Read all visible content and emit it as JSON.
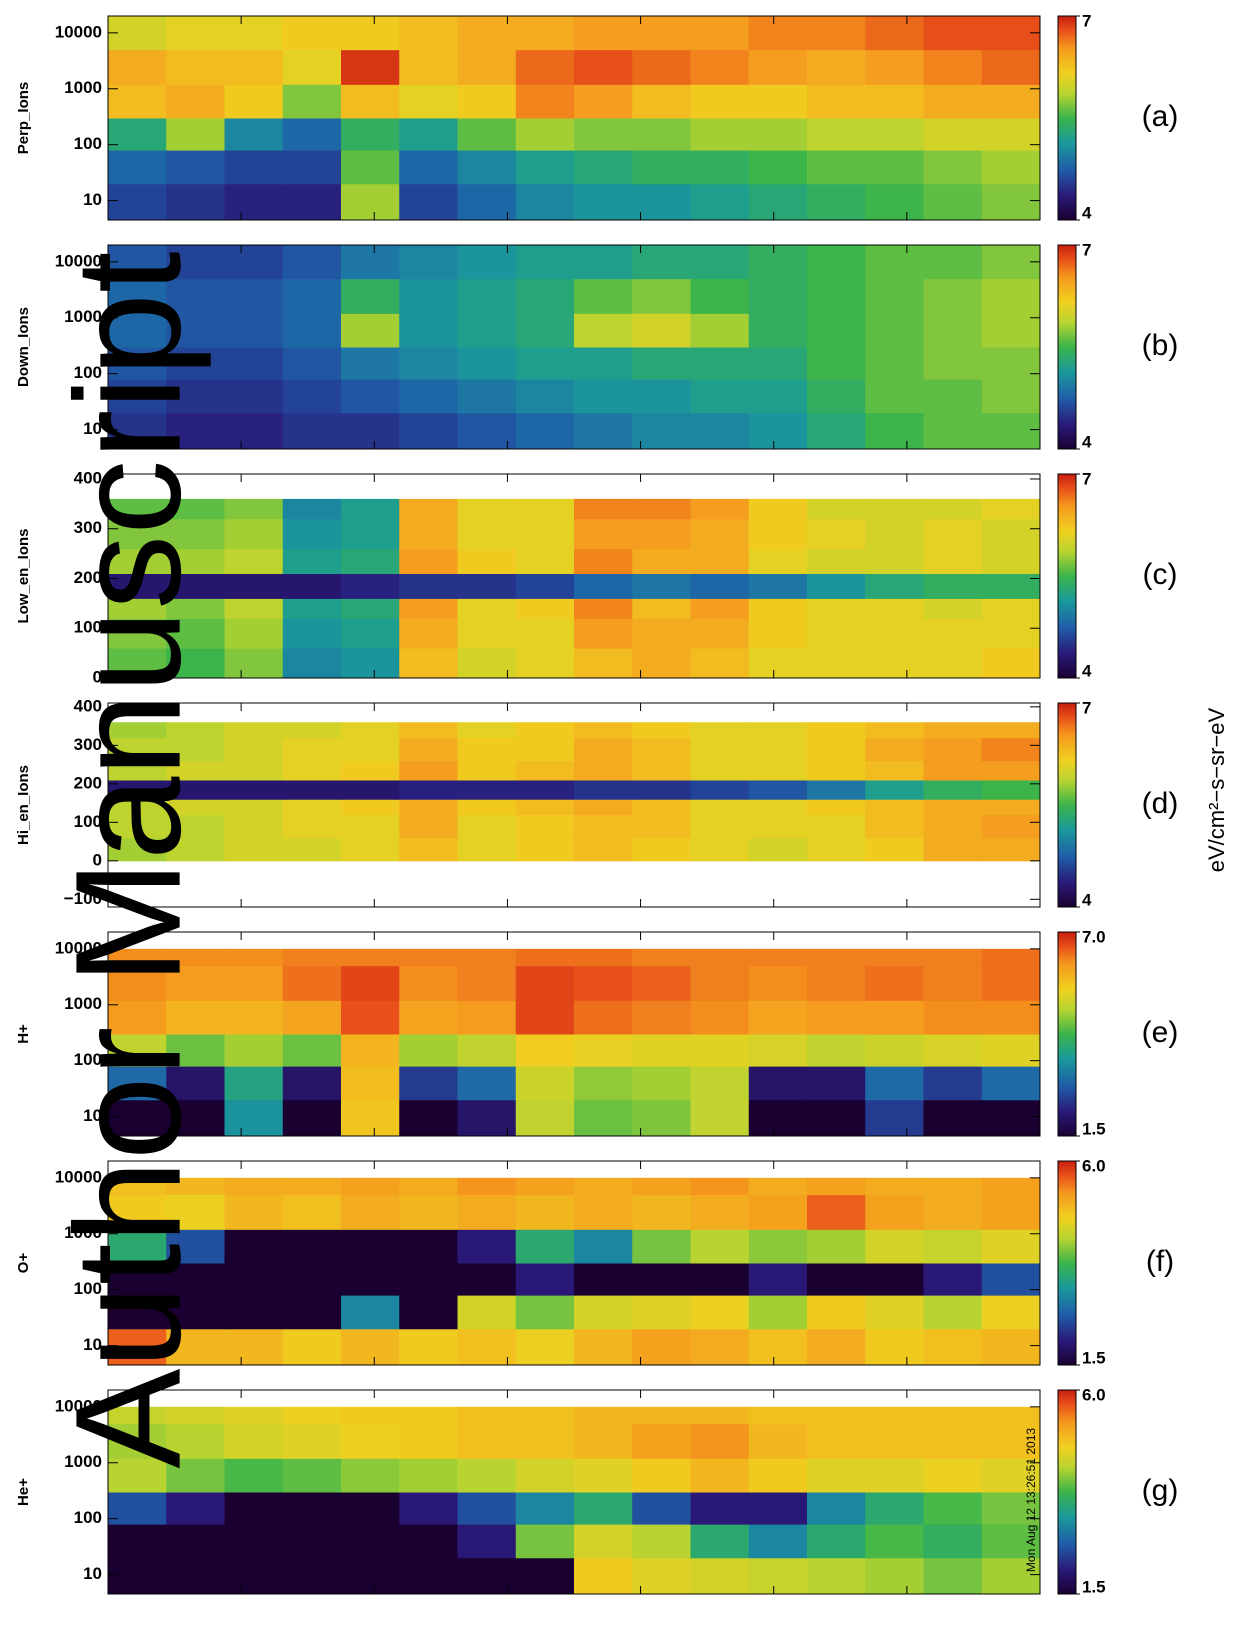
{
  "chart_data": [
    {
      "type": "heatmap",
      "ylabel": "Perp_Ions",
      "panel_label": "(a)",
      "log_y": true,
      "ylim": [
        4.5,
        20000
      ],
      "yticks": [
        10,
        100,
        1000,
        10000
      ],
      "yedges": [
        4.5,
        20,
        80,
        300,
        1200,
        5000,
        20000
      ],
      "clim": [
        4,
        7
      ],
      "cticks": [
        4,
        7
      ],
      "z": [
        [
          4.6,
          4.5,
          4.4,
          4.4,
          5.8,
          4.6,
          4.8,
          5.0,
          5.1,
          5.1,
          5.2,
          5.3,
          5.4,
          5.5,
          5.6,
          5.7
        ],
        [
          4.8,
          4.7,
          4.6,
          4.6,
          5.6,
          4.8,
          5.0,
          5.2,
          5.3,
          5.4,
          5.4,
          5.5,
          5.6,
          5.6,
          5.7,
          5.8
        ],
        [
          5.3,
          5.8,
          5.0,
          4.8,
          5.4,
          5.2,
          5.6,
          5.8,
          5.7,
          5.7,
          5.8,
          5.8,
          5.9,
          5.9,
          6.0,
          6.0
        ],
        [
          6.3,
          6.4,
          6.2,
          5.7,
          6.3,
          6.1,
          6.2,
          6.6,
          6.5,
          6.3,
          6.2,
          6.2,
          6.3,
          6.3,
          6.4,
          6.4
        ],
        [
          6.4,
          6.3,
          6.3,
          6.1,
          6.9,
          6.3,
          6.4,
          6.7,
          6.8,
          6.7,
          6.6,
          6.5,
          6.4,
          6.5,
          6.6,
          6.7
        ],
        [
          6.0,
          6.1,
          6.1,
          6.2,
          6.2,
          6.3,
          6.4,
          6.4,
          6.5,
          6.5,
          6.5,
          6.6,
          6.6,
          6.7,
          6.8,
          6.8
        ]
      ]
    },
    {
      "type": "heatmap",
      "ylabel": "Down_Ions",
      "panel_label": "(b)",
      "log_y": true,
      "ylim": [
        4.5,
        20000
      ],
      "yticks": [
        10,
        100,
        1000,
        10000
      ],
      "yedges": [
        4.5,
        20,
        80,
        300,
        1200,
        5000,
        20000
      ],
      "clim": [
        4,
        7
      ],
      "cticks": [
        4,
        7
      ],
      "z": [
        [
          4.5,
          4.4,
          4.4,
          4.5,
          4.5,
          4.6,
          4.7,
          4.8,
          4.9,
          5.0,
          5.0,
          5.1,
          5.3,
          5.5,
          5.6,
          5.6
        ],
        [
          4.6,
          4.5,
          4.5,
          4.6,
          4.7,
          4.8,
          4.9,
          5.0,
          5.1,
          5.1,
          5.2,
          5.2,
          5.4,
          5.6,
          5.6,
          5.7
        ],
        [
          4.7,
          4.6,
          4.6,
          4.7,
          4.9,
          5.0,
          5.1,
          5.2,
          5.2,
          5.3,
          5.3,
          5.3,
          5.5,
          5.6,
          5.7,
          5.7
        ],
        [
          4.8,
          4.7,
          4.7,
          4.8,
          5.8,
          5.1,
          5.2,
          5.3,
          5.9,
          6.0,
          5.8,
          5.4,
          5.5,
          5.6,
          5.7,
          5.8
        ],
        [
          4.8,
          4.7,
          4.7,
          4.8,
          5.4,
          5.1,
          5.2,
          5.3,
          5.6,
          5.7,
          5.5,
          5.4,
          5.5,
          5.6,
          5.7,
          5.8
        ],
        [
          4.7,
          4.6,
          4.6,
          4.7,
          4.9,
          5.0,
          5.1,
          5.2,
          5.2,
          5.3,
          5.3,
          5.4,
          5.5,
          5.6,
          5.6,
          5.7
        ]
      ]
    },
    {
      "type": "heatmap",
      "ylabel": "Low_en_Ions",
      "panel_label": "(c)",
      "log_y": false,
      "ylim": [
        0,
        410
      ],
      "yticks": [
        0,
        100,
        200,
        300,
        400
      ],
      "yedges": [
        0,
        60,
        120,
        160,
        210,
        260,
        320,
        360
      ],
      "clim": [
        4,
        7
      ],
      "cticks": [
        4,
        7
      ],
      "z": [
        [
          5.6,
          5.5,
          5.7,
          5.0,
          5.1,
          6.3,
          6.0,
          6.1,
          6.3,
          6.4,
          6.3,
          6.1,
          6.1,
          6.1,
          6.1,
          6.2
        ],
        [
          5.7,
          5.6,
          5.8,
          5.1,
          5.2,
          6.4,
          6.1,
          6.1,
          6.5,
          6.4,
          6.4,
          6.2,
          6.1,
          6.1,
          6.1,
          6.1
        ],
        [
          5.8,
          5.7,
          5.9,
          5.2,
          5.3,
          6.5,
          6.1,
          6.2,
          6.6,
          6.3,
          6.5,
          6.2,
          6.1,
          6.1,
          6.0,
          6.1
        ],
        [
          4.3,
          4.3,
          4.3,
          4.3,
          4.4,
          4.5,
          4.5,
          4.6,
          4.8,
          4.9,
          4.8,
          4.9,
          5.1,
          5.3,
          5.4,
          5.4
        ],
        [
          5.8,
          5.8,
          5.9,
          5.2,
          5.3,
          6.5,
          6.2,
          6.1,
          6.6,
          6.4,
          6.4,
          6.1,
          6.0,
          6.0,
          6.1,
          6.0
        ],
        [
          5.7,
          5.7,
          5.8,
          5.1,
          5.2,
          6.4,
          6.1,
          6.1,
          6.5,
          6.5,
          6.4,
          6.2,
          6.1,
          6.0,
          6.1,
          6.0
        ],
        [
          5.6,
          5.6,
          5.7,
          5.0,
          5.2,
          6.4,
          6.1,
          6.1,
          6.6,
          6.6,
          6.5,
          6.2,
          6.0,
          6.0,
          6.0,
          6.1
        ]
      ]
    },
    {
      "type": "heatmap",
      "ylabel": "Hi_en_Ions",
      "panel_label": "(d)",
      "log_y": false,
      "ylim": [
        -120,
        410
      ],
      "yticks": [
        {
          "value": -100,
          "label": "−100"
        },
        0,
        100,
        200,
        300,
        400
      ],
      "yedges": [
        0,
        60,
        120,
        160,
        210,
        260,
        320,
        360
      ],
      "clim": [
        4,
        7
      ],
      "cticks": [
        4,
        7
      ],
      "z": [
        [
          5.8,
          5.9,
          6.0,
          6.0,
          6.1,
          6.3,
          6.1,
          6.2,
          6.3,
          6.2,
          6.1,
          6.0,
          6.1,
          6.2,
          6.4,
          6.4
        ],
        [
          5.9,
          5.9,
          6.0,
          6.1,
          6.1,
          6.4,
          6.1,
          6.2,
          6.3,
          6.3,
          6.1,
          6.1,
          6.1,
          6.3,
          6.4,
          6.5
        ],
        [
          5.9,
          6.0,
          6.0,
          6.1,
          6.2,
          6.4,
          6.2,
          6.3,
          6.4,
          6.3,
          6.1,
          6.1,
          6.2,
          6.3,
          6.4,
          6.4
        ],
        [
          4.3,
          4.3,
          4.3,
          4.3,
          4.3,
          4.4,
          4.4,
          4.4,
          4.5,
          4.5,
          4.6,
          4.7,
          4.9,
          5.2,
          5.4,
          5.5
        ],
        [
          5.9,
          6.0,
          6.0,
          6.1,
          6.2,
          6.5,
          6.2,
          6.3,
          6.4,
          6.3,
          6.1,
          6.1,
          6.2,
          6.3,
          6.5,
          6.5
        ],
        [
          5.9,
          5.9,
          6.0,
          6.1,
          6.1,
          6.4,
          6.2,
          6.2,
          6.4,
          6.3,
          6.1,
          6.1,
          6.2,
          6.4,
          6.5,
          6.6
        ],
        [
          5.8,
          5.9,
          6.0,
          6.0,
          6.1,
          6.3,
          6.1,
          6.2,
          6.3,
          6.2,
          6.1,
          6.1,
          6.2,
          6.3,
          6.4,
          6.4
        ]
      ]
    },
    {
      "type": "heatmap",
      "ylabel": "H+",
      "panel_label": "(e)",
      "log_y": true,
      "ylim": [
        4.5,
        20000
      ],
      "yticks": [
        10,
        100,
        1000,
        10000
      ],
      "yedges": [
        4.5,
        20,
        80,
        300,
        1200,
        5000,
        10000
      ],
      "clim": [
        1.5,
        7
      ],
      "cticks": [
        1.5,
        {
          "value": 7,
          "label": "7.0"
        }
      ],
      "z": [
        [
          1.5,
          1.5,
          3.5,
          1.5,
          5.6,
          1.5,
          2.0,
          5.0,
          4.5,
          4.6,
          5.0,
          1.5,
          1.5,
          2.5,
          1.5,
          1.5
        ],
        [
          3.0,
          2.0,
          3.8,
          2.0,
          5.7,
          2.5,
          3.0,
          5.1,
          4.7,
          4.8,
          5.0,
          2.0,
          2.0,
          3.0,
          2.5,
          3.0
        ],
        [
          5.0,
          4.5,
          4.8,
          4.5,
          5.8,
          4.8,
          5.0,
          5.5,
          5.4,
          5.3,
          5.3,
          5.2,
          5.0,
          5.1,
          5.2,
          5.3
        ],
        [
          6.1,
          5.8,
          5.8,
          6.0,
          6.6,
          6.0,
          6.1,
          6.7,
          6.4,
          6.3,
          6.2,
          6.0,
          6.1,
          6.1,
          6.2,
          6.2
        ],
        [
          6.2,
          6.1,
          6.1,
          6.4,
          6.7,
          6.2,
          6.3,
          6.7,
          6.6,
          6.5,
          6.3,
          6.2,
          6.3,
          6.4,
          6.3,
          6.4
        ],
        [
          6.2,
          6.2,
          6.2,
          6.3,
          6.3,
          6.3,
          6.3,
          6.4,
          6.4,
          6.3,
          6.3,
          6.3,
          6.3,
          6.3,
          6.3,
          6.4
        ]
      ]
    },
    {
      "type": "heatmap",
      "ylabel": "O+",
      "panel_label": "(f)",
      "log_y": true,
      "ylim": [
        4.5,
        20000
      ],
      "yticks": [
        10,
        100,
        1000,
        10000
      ],
      "yedges": [
        4.5,
        20,
        80,
        300,
        1200,
        5000,
        10000
      ],
      "clim": [
        1.5,
        6
      ],
      "cticks": [
        1.5,
        {
          "value": 6,
          "label": "6.0"
        }
      ],
      "z": [
        [
          5.6,
          5.0,
          5.0,
          4.8,
          5.0,
          4.8,
          4.9,
          4.7,
          5.0,
          5.2,
          5.1,
          4.9,
          5.1,
          4.8,
          4.9,
          5.0
        ],
        [
          1.5,
          1.5,
          1.5,
          1.5,
          3.0,
          1.5,
          4.5,
          4.0,
          4.5,
          4.6,
          4.7,
          4.2,
          4.8,
          4.6,
          4.3,
          4.7
        ],
        [
          1.5,
          1.5,
          1.5,
          1.5,
          1.5,
          1.5,
          1.5,
          2.0,
          1.5,
          1.5,
          1.5,
          2.0,
          1.5,
          1.5,
          2.0,
          2.5
        ],
        [
          3.5,
          2.5,
          1.5,
          1.5,
          1.5,
          1.5,
          2.0,
          3.5,
          3.0,
          4.0,
          4.3,
          4.1,
          4.2,
          4.5,
          4.4,
          4.6
        ],
        [
          4.8,
          4.7,
          5.0,
          4.9,
          5.1,
          5.0,
          5.1,
          5.0,
          5.1,
          5.0,
          5.1,
          5.2,
          5.6,
          5.2,
          5.1,
          5.2
        ],
        [
          4.9,
          5.0,
          5.1,
          5.1,
          5.2,
          5.1,
          5.3,
          5.2,
          5.1,
          5.2,
          5.3,
          5.1,
          5.2,
          5.1,
          5.1,
          5.2
        ]
      ]
    },
    {
      "type": "heatmap",
      "ylabel": "He+",
      "panel_label": "(g)",
      "log_y": true,
      "ylim": [
        4.5,
        20000
      ],
      "yticks": [
        10,
        100,
        1000,
        10000
      ],
      "yedges": [
        4.5,
        20,
        80,
        300,
        1200,
        5000,
        10000
      ],
      "clim": [
        1.5,
        6
      ],
      "cticks": [
        1.5,
        {
          "value": 6,
          "label": "6.0"
        }
      ],
      "z": [
        [
          1.5,
          1.5,
          1.5,
          1.5,
          1.5,
          1.5,
          1.5,
          1.5,
          4.8,
          4.6,
          4.5,
          4.4,
          4.3,
          4.2,
          4.0,
          4.2
        ],
        [
          1.5,
          1.5,
          1.5,
          1.5,
          1.5,
          1.5,
          2.0,
          4.0,
          4.5,
          4.3,
          3.5,
          3.0,
          3.5,
          3.8,
          3.6,
          3.9
        ],
        [
          2.5,
          2.0,
          1.5,
          1.5,
          1.5,
          2.0,
          2.5,
          3.0,
          3.5,
          2.5,
          2.0,
          2.0,
          3.0,
          3.5,
          3.8,
          4.0
        ],
        [
          4.3,
          4.0,
          3.8,
          3.9,
          4.1,
          4.2,
          4.3,
          4.5,
          4.6,
          4.8,
          5.0,
          4.8,
          4.6,
          4.6,
          4.7,
          4.6
        ],
        [
          4.2,
          4.3,
          4.5,
          4.6,
          4.7,
          4.8,
          4.9,
          4.9,
          5.0,
          5.2,
          5.3,
          5.0,
          4.9,
          4.9,
          4.9,
          4.9
        ],
        [
          4.4,
          4.5,
          4.6,
          4.7,
          4.8,
          4.8,
          4.9,
          4.9,
          5.0,
          5.0,
          5.0,
          4.9,
          4.9,
          4.9,
          4.9,
          4.9
        ]
      ]
    }
  ],
  "colorbar_label": "eV/cm²−s−sr−eV",
  "timestamp": "Mon Aug 12 13:26:51 2013",
  "watermark": "Author Manuscript"
}
